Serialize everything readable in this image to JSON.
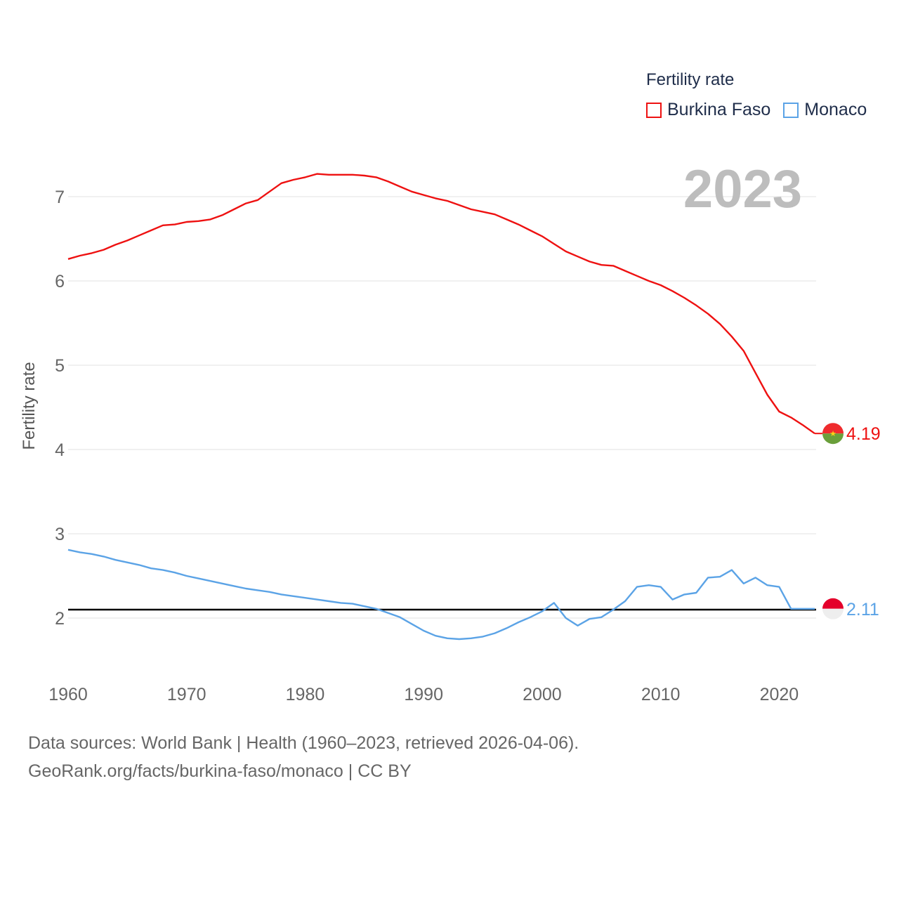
{
  "legend": {
    "title": "Fertility rate",
    "items": [
      {
        "label": "Burkina Faso",
        "color": "#ee1111"
      },
      {
        "label": "Monaco",
        "color": "#5ba3e6"
      }
    ]
  },
  "year_label": "2023",
  "y_axis_title": "Fertility rate",
  "footer": {
    "line1": "Data sources: World Bank | Health (1960–2023, retrieved 2026-04-06).",
    "line2": "GeoRank.org/facts/burkina-faso/monaco | CC BY"
  },
  "end_labels": {
    "burkina_faso": "4.19",
    "monaco": "2.11"
  },
  "chart_data": {
    "type": "line",
    "title": "Fertility rate",
    "xlabel": "",
    "ylabel": "Fertility rate",
    "xlim": [
      1960,
      2023
    ],
    "ylim": [
      1.4,
      7.5
    ],
    "x_ticks": [
      1960,
      1970,
      1980,
      1990,
      2000,
      2010,
      2020
    ],
    "y_ticks": [
      2,
      3,
      4,
      5,
      6,
      7
    ],
    "grid": true,
    "legend_position": "top-right",
    "reference_line": {
      "y": 2.1,
      "color": "#000000"
    },
    "x": [
      1960,
      1961,
      1962,
      1963,
      1964,
      1965,
      1966,
      1967,
      1968,
      1969,
      1970,
      1971,
      1972,
      1973,
      1974,
      1975,
      1976,
      1977,
      1978,
      1979,
      1980,
      1981,
      1982,
      1983,
      1984,
      1985,
      1986,
      1987,
      1988,
      1989,
      1990,
      1991,
      1992,
      1993,
      1994,
      1995,
      1996,
      1997,
      1998,
      1999,
      2000,
      2001,
      2002,
      2003,
      2004,
      2005,
      2006,
      2007,
      2008,
      2009,
      2010,
      2011,
      2012,
      2013,
      2014,
      2015,
      2016,
      2017,
      2018,
      2019,
      2020,
      2021,
      2022,
      2023
    ],
    "series": [
      {
        "name": "Burkina Faso",
        "color": "#ee1111",
        "values": [
          6.26,
          6.3,
          6.33,
          6.37,
          6.43,
          6.48,
          6.54,
          6.6,
          6.66,
          6.67,
          6.7,
          6.71,
          6.73,
          6.78,
          6.85,
          6.92,
          6.96,
          7.06,
          7.16,
          7.2,
          7.23,
          7.27,
          7.26,
          7.26,
          7.26,
          7.25,
          7.23,
          7.18,
          7.12,
          7.06,
          7.02,
          6.98,
          6.95,
          6.9,
          6.85,
          6.82,
          6.79,
          6.73,
          6.67,
          6.6,
          6.53,
          6.44,
          6.35,
          6.29,
          6.23,
          6.19,
          6.18,
          6.12,
          6.06,
          6.0,
          5.95,
          5.88,
          5.8,
          5.71,
          5.61,
          5.49,
          5.34,
          5.17,
          4.91,
          4.65,
          4.45,
          4.38,
          4.29,
          4.19
        ]
      },
      {
        "name": "Monaco",
        "color": "#5ba3e6",
        "values": [
          2.81,
          2.78,
          2.76,
          2.73,
          2.69,
          2.66,
          2.63,
          2.59,
          2.57,
          2.54,
          2.5,
          2.47,
          2.44,
          2.41,
          2.38,
          2.35,
          2.33,
          2.31,
          2.28,
          2.26,
          2.24,
          2.22,
          2.2,
          2.18,
          2.17,
          2.14,
          2.11,
          2.06,
          2.01,
          1.93,
          1.85,
          1.79,
          1.76,
          1.75,
          1.76,
          1.78,
          1.82,
          1.88,
          1.95,
          2.01,
          2.08,
          2.18,
          2.0,
          1.91,
          1.99,
          2.01,
          2.1,
          2.2,
          2.37,
          2.39,
          2.37,
          2.22,
          2.28,
          2.3,
          2.48,
          2.49,
          2.57,
          2.41,
          2.48,
          2.39,
          2.37,
          2.11,
          2.11,
          2.11
        ]
      }
    ]
  }
}
